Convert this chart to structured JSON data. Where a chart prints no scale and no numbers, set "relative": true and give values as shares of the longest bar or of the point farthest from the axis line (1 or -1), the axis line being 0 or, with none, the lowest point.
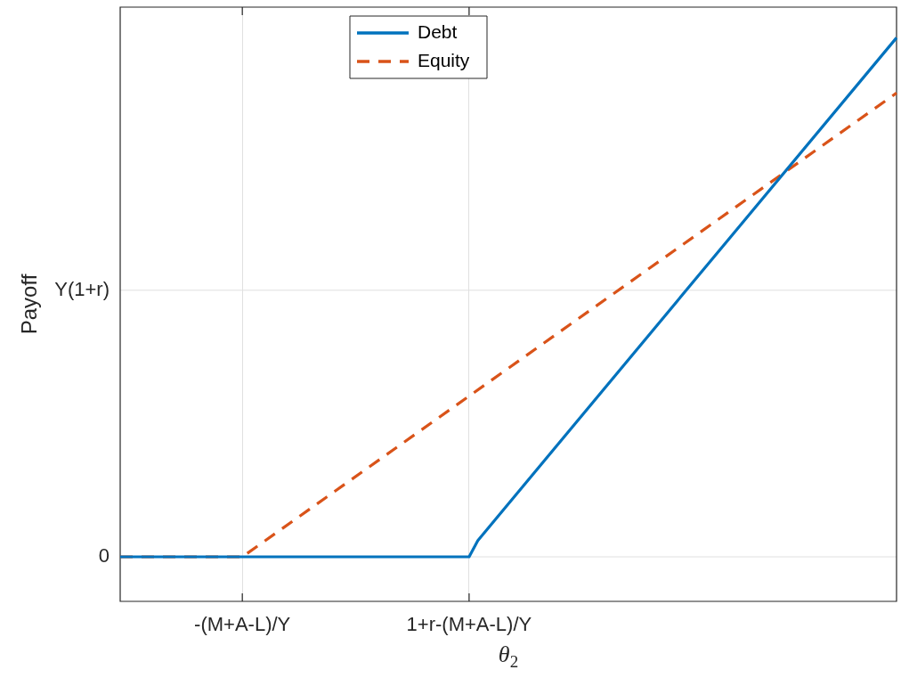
{
  "chart_data": {
    "type": "line",
    "xlabel": "θ$_{2}$",
    "ylabel": "Payoff",
    "relative": true,
    "categories": [
      null,
      null,
      null,
      null,
      null,
      null,
      null,
      null,
      null,
      null,
      null,
      null,
      null,
      null,
      "-(M+A-L)/Y",
      null,
      null,
      null,
      null,
      null,
      null,
      null,
      null,
      null,
      null,
      null,
      null,
      null,
      null,
      null,
      null,
      null,
      null,
      null,
      null,
      null,
      null,
      null,
      null,
      null,
      "1+r-(M+A-L)/Y",
      null,
      null,
      null,
      null,
      null,
      null,
      null,
      null,
      null,
      null,
      null,
      null,
      null,
      null,
      null,
      null,
      null,
      null,
      null,
      null,
      null,
      null,
      null,
      null,
      null,
      null,
      null,
      null,
      null,
      null,
      null,
      null,
      null,
      null,
      null,
      null,
      null,
      null,
      null,
      null,
      null,
      null,
      null,
      null,
      null,
      null,
      null,
      null,
      null
    ],
    "series": [
      {
        "name": "Debt",
        "color": "#0072bd",
        "line_style": "solid",
        "values": [
          0.079,
          null,
          null,
          null,
          null,
          null,
          null,
          null,
          null,
          null,
          null,
          null,
          null,
          null,
          null,
          null,
          null,
          null,
          null,
          null,
          null,
          null,
          null,
          null,
          null,
          null,
          null,
          null,
          null,
          null,
          null,
          null,
          null,
          null,
          null,
          null,
          null,
          null,
          null,
          null,
          0.079,
          0.108,
          null,
          null,
          null,
          null,
          null,
          null,
          null,
          null,
          null,
          null,
          null,
          null,
          null,
          null,
          null,
          null,
          null,
          null,
          null,
          null,
          null,
          null,
          null,
          null,
          null,
          null,
          null,
          null,
          null,
          null,
          null,
          null,
          null,
          null,
          null,
          null,
          null,
          null,
          null,
          null,
          null,
          null,
          null,
          null,
          null,
          null,
          null,
          1
        ]
      },
      {
        "name": "Equity",
        "color": "#d95319",
        "line_style": "dashed",
        "values": [
          0.079,
          null,
          null,
          null,
          null,
          null,
          null,
          null,
          null,
          null,
          null,
          null,
          null,
          null,
          0.079,
          null,
          null,
          null,
          null,
          null,
          null,
          null,
          null,
          null,
          null,
          null,
          null,
          null,
          null,
          null,
          null,
          null,
          null,
          null,
          null,
          null,
          null,
          null,
          null,
          null,
          null,
          null,
          null,
          null,
          null,
          null,
          null,
          null,
          null,
          null,
          null,
          null,
          null,
          null,
          null,
          null,
          null,
          null,
          null,
          null,
          null,
          null,
          null,
          null,
          null,
          null,
          null,
          null,
          null,
          null,
          null,
          null,
          null,
          null,
          null,
          null,
          null,
          null,
          null,
          null,
          null,
          null,
          null,
          null,
          null,
          null,
          null,
          null,
          null,
          0.902
        ]
      }
    ],
    "ref_lines": [
      {
        "axis": "y",
        "value": 0.079,
        "label": "0",
        "color": "#e0e0e0"
      },
      {
        "axis": "y",
        "value": 0.552,
        "label": "Y(1+r)",
        "color": "#e0e0e0"
      }
    ],
    "grid": "x",
    "legend": "top",
    "marker": "none"
  }
}
